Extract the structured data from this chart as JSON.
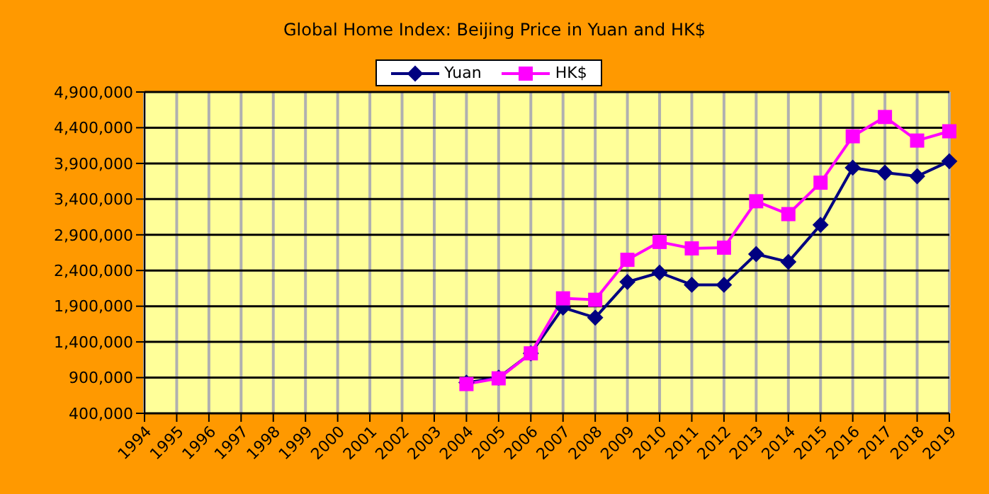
{
  "chart_data": {
    "type": "line",
    "title": "Global Home Index: Beijing Price in Yuan and HK$",
    "categories": [
      "1994",
      "1995",
      "1996",
      "1997",
      "1998",
      "1999",
      "2000",
      "2001",
      "2002",
      "2003",
      "2004",
      "2005",
      "2006",
      "2007",
      "2008",
      "2009",
      "2010",
      "2011",
      "2012",
      "2013",
      "2014",
      "2015",
      "2016",
      "2017",
      "2018",
      "2019"
    ],
    "series": [
      {
        "name": "Yuan",
        "color": "#000080",
        "marker": "diamond",
        "values": [
          null,
          null,
          null,
          null,
          null,
          null,
          null,
          null,
          null,
          null,
          830000,
          900000,
          1240000,
          1880000,
          1740000,
          2240000,
          2370000,
          2200000,
          2200000,
          2630000,
          2520000,
          3040000,
          3840000,
          3770000,
          3720000,
          3930000
        ]
      },
      {
        "name": "HK$",
        "color": "#ff00ff",
        "marker": "square",
        "values": [
          null,
          null,
          null,
          null,
          null,
          null,
          null,
          null,
          null,
          null,
          810000,
          890000,
          1240000,
          2010000,
          1990000,
          2550000,
          2800000,
          2710000,
          2720000,
          3370000,
          3190000,
          3630000,
          4280000,
          4550000,
          4220000,
          4350000
        ]
      }
    ],
    "ylim": [
      400000,
      4900000
    ],
    "yticks": [
      {
        "value": 400000,
        "label": "400,000"
      },
      {
        "value": 900000,
        "label": "900,000"
      },
      {
        "value": 1400000,
        "label": "1,400,000"
      },
      {
        "value": 1900000,
        "label": "1,900,000"
      },
      {
        "value": 2400000,
        "label": "2,400,000"
      },
      {
        "value": 2900000,
        "label": "2,900,000"
      },
      {
        "value": 3400000,
        "label": "3,400,000"
      },
      {
        "value": 3900000,
        "label": "3,900,000"
      },
      {
        "value": 4400000,
        "label": "4,400,000"
      },
      {
        "value": 4900000,
        "label": "4,900,000"
      }
    ],
    "grid": true,
    "legend": "top"
  }
}
